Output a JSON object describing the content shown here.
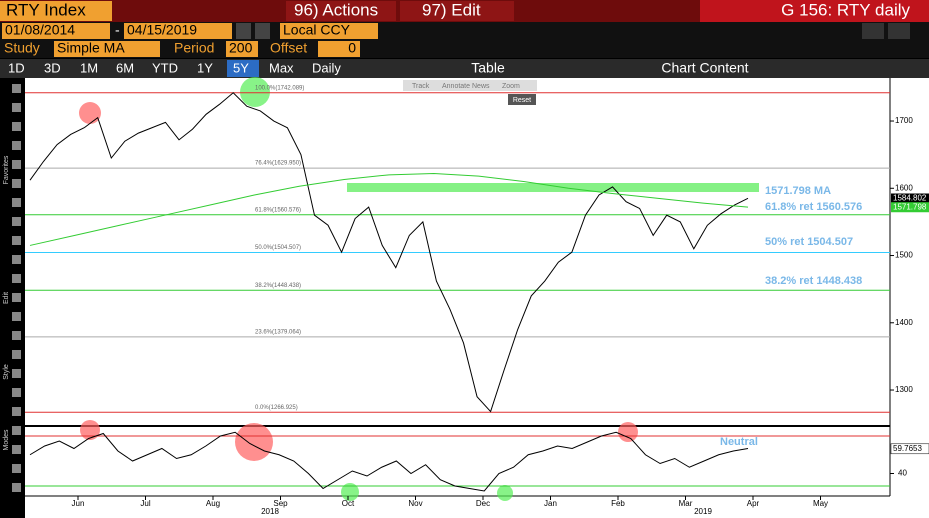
{
  "header": {
    "ticker": "RTY Index",
    "actions": "96) Actions",
    "edit": "97) Edit",
    "title": "G 156: RTY daily"
  },
  "controls": {
    "start": "01/08/2014",
    "dash": "-",
    "end": "04/15/2019",
    "currency": "Local CCY",
    "study_label": "Study",
    "study": "Simple MA",
    "period_label": "Period",
    "period": "200",
    "offset_label": "Offset",
    "offset": "0"
  },
  "ranges": [
    "1D",
    "3D",
    "1M",
    "6M",
    "YTD",
    "1Y",
    "5Y",
    "Max"
  ],
  "frequency": "Daily",
  "table": "Table",
  "chart_content": "Chart Content",
  "overlay_tools": [
    "Track",
    "Annotate",
    "News",
    "Zoom"
  ],
  "reset": "Reset",
  "side_labels": [
    "Favorites",
    "Edit",
    "Style",
    "Modes"
  ],
  "annotations": [
    "1571.798 MA",
    "61.8% ret 1560.576",
    "50% ret 1504.507",
    "38.2% ret 1448.438"
  ],
  "chart_data": [
    {
      "type": "line",
      "title": "RTY Index",
      "ylim": [
        1248,
        1761
      ],
      "yticks": [
        1300,
        1400,
        1500,
        1600,
        1700
      ],
      "series": [
        {
          "color": "#000000",
          "values": [
            1612,
            1640,
            1665,
            1680,
            1690,
            1705,
            1645,
            1670,
            1682,
            1690,
            1698,
            1672,
            1688,
            1710,
            1725,
            1742,
            1722,
            1715,
            1700,
            1690,
            1650,
            1560,
            1545,
            1505,
            1555,
            1572,
            1515,
            1482,
            1530,
            1550,
            1462,
            1420,
            1370,
            1290,
            1268,
            1330,
            1390,
            1440,
            1462,
            1490,
            1505,
            1560,
            1590,
            1602,
            1580,
            1570,
            1530,
            1560,
            1550,
            1510,
            1545,
            1562,
            1575,
            1585
          ]
        },
        {
          "color": "#33cc33",
          "values": [
            1515,
            1530,
            1545,
            1560,
            1575,
            1590,
            1603,
            1613,
            1620,
            1622,
            1618,
            1610,
            1600,
            1592,
            1585,
            1578,
            1572
          ]
        }
      ],
      "fib_levels": [
        {
          "label": "100.0%(1742.089)",
          "value": 1742.089,
          "color": "#e03030"
        },
        {
          "label": "76.4%(1629.950)",
          "value": 1629.95,
          "color": "#aaaaaa"
        },
        {
          "label": "61.8%(1560.576)",
          "value": 1560.576,
          "color": "#33cc33"
        },
        {
          "label": "50.0%(1504.507)",
          "value": 1504.507,
          "color": "#33ccff"
        },
        {
          "label": "38.2%(1448.438)",
          "value": 1448.438,
          "color": "#33cc33"
        },
        {
          "label": "23.6%(1379.064)",
          "value": 1379.064,
          "color": "#aaaaaa"
        },
        {
          "label": "0.0%(1266.925)",
          "value": 1266.925,
          "color": "#e03030"
        }
      ],
      "last_labels": [
        {
          "label": "1584.802",
          "value": 1584.802
        },
        {
          "label": "1571.798",
          "value": 1571.798
        }
      ],
      "xticks": [
        "Jun",
        "Jul",
        "Aug",
        "Sep",
        "Oct",
        "Nov",
        "Dec",
        "Jan",
        "Feb",
        "Mar",
        "Apr",
        "May"
      ],
      "years": [
        "2018",
        "2019"
      ]
    },
    {
      "type": "line",
      "ylim": [
        22.8,
        76.4
      ],
      "yticks": [
        40
      ],
      "overbought": 70,
      "oversold": 30,
      "annotation": "Neutral",
      "last_label": {
        "label": "59.7653",
        "value": 59.7653
      },
      "series": [
        {
          "color": "#000000",
          "values": [
            55,
            62,
            66,
            60,
            68,
            72,
            58,
            50,
            55,
            60,
            52,
            55,
            62,
            70,
            73,
            64,
            58,
            55,
            50,
            40,
            28,
            35,
            42,
            38,
            45,
            50,
            40,
            47,
            35,
            30,
            28,
            26,
            40,
            45,
            55,
            58,
            62,
            60,
            65,
            70,
            73,
            68,
            55,
            48,
            52,
            45,
            50,
            55,
            58,
            60
          ]
        }
      ]
    }
  ]
}
